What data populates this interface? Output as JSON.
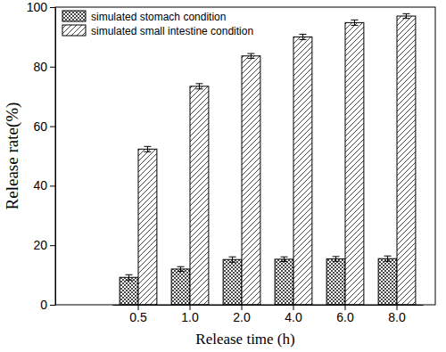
{
  "chart_data": {
    "type": "bar",
    "x_label": "Release time (h)",
    "y_label": "Release rate(%)",
    "categories": [
      "0.5",
      "1.0",
      "2.0",
      "4.0",
      "6.0",
      "8.0"
    ],
    "series": [
      {
        "name": "simulated stomach condition",
        "color": "#333333",
        "values": [
          9.2,
          12.0,
          15.2,
          15.3,
          15.4,
          15.5
        ],
        "errors": [
          0.9,
          0.8,
          0.9,
          0.8,
          0.8,
          0.9
        ]
      },
      {
        "name": "simulated small intestine condition",
        "color": "#333333",
        "values": [
          52.3,
          73.4,
          83.6,
          90.0,
          94.8,
          97.0
        ],
        "errors": [
          0.9,
          0.9,
          0.8,
          0.9,
          0.9,
          0.8
        ]
      }
    ],
    "ylim": [
      0,
      100
    ],
    "yticks": [
      0,
      20,
      40,
      60,
      80,
      100
    ],
    "legend": "upper left"
  }
}
